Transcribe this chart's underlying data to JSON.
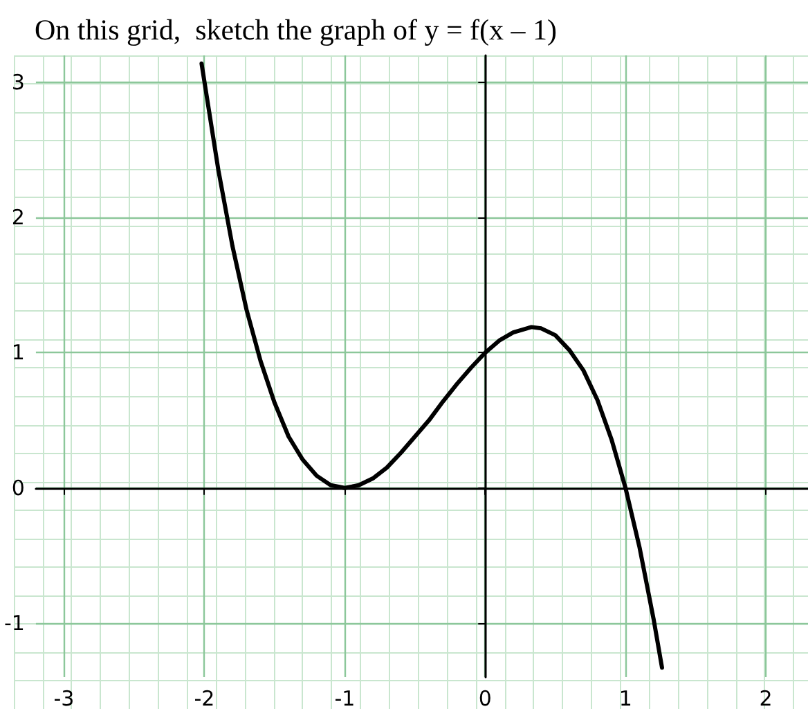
{
  "chart_data": {
    "type": "line",
    "title": "On this grid,  sketch the graph of y = f(x – 1)",
    "series": [
      {
        "color": "#000000",
        "x": [
          -2.02,
          -1.9,
          -1.8,
          -1.7,
          -1.6,
          -1.5,
          -1.4,
          -1.3,
          -1.2,
          -1.1,
          -1,
          -0.9,
          -0.8,
          -0.7,
          -0.6,
          -0.5,
          -0.4,
          -0.3,
          -0.2,
          -0.1,
          0,
          0.1,
          0.2,
          0.33,
          0.4,
          0.5,
          0.6,
          0.7,
          0.8,
          0.9,
          1,
          1.1,
          1.2,
          1.26
        ],
        "values": [
          3.14,
          2.35,
          1.79,
          1.32,
          0.94,
          0.63,
          0.38,
          0.21,
          0.09,
          0.02,
          0,
          0.02,
          0.07,
          0.15,
          0.26,
          0.38,
          0.5,
          0.64,
          0.77,
          0.89,
          1,
          1.09,
          1.15,
          1.19,
          1.18,
          1.13,
          1.02,
          0.87,
          0.65,
          0.36,
          0,
          -0.44,
          -0.97,
          -1.33
        ]
      }
    ],
    "xlim": [
      -3.2,
      2.3
    ],
    "ylim": [
      -1.4,
      3.2
    ],
    "xticks": [
      -3,
      -2,
      -1,
      0,
      1,
      2
    ],
    "yticks": [
      -1,
      0,
      1,
      2,
      3
    ],
    "grid": true,
    "marker": "none",
    "line_style": "solid"
  }
}
